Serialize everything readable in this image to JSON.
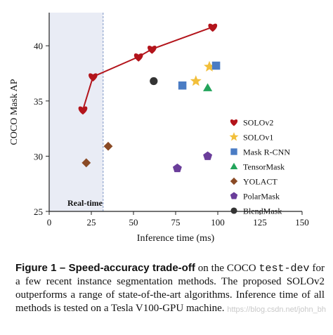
{
  "chart_data": {
    "type": "scatter",
    "xlabel": "Inference time (ms)",
    "ylabel": "COCO Mask AP",
    "xlim": [
      0,
      150
    ],
    "ylim": [
      25,
      43
    ],
    "xticks": [
      0,
      25,
      50,
      75,
      100,
      125,
      150
    ],
    "yticks": [
      25,
      30,
      35,
      40
    ],
    "grid": false,
    "legend_position": "right",
    "shaded_region": {
      "label": "Real-time",
      "x_range": [
        0,
        32
      ],
      "color": "#e9ecf5"
    },
    "series": [
      {
        "name": "SOLOv2",
        "marker": "heart",
        "color": "#b3141b",
        "line": true,
        "points": [
          [
            20,
            34.2
          ],
          [
            26,
            37.2
          ],
          [
            53,
            39.0
          ],
          [
            61,
            39.7
          ],
          [
            97,
            41.7
          ]
        ]
      },
      {
        "name": "SOLOv1",
        "marker": "star",
        "color": "#f2bf3a",
        "points": [
          [
            87,
            36.8
          ],
          [
            95,
            38.1
          ]
        ]
      },
      {
        "name": "Mask R-CNN",
        "marker": "square",
        "color": "#4a7cc4",
        "points": [
          [
            79,
            36.4
          ],
          [
            99,
            38.2
          ]
        ]
      },
      {
        "name": "TensorMask",
        "marker": "triangle",
        "color": "#23a45b",
        "points": [
          [
            94,
            36.2
          ]
        ]
      },
      {
        "name": "YOLACT",
        "marker": "diamond",
        "color": "#8a4a25",
        "points": [
          [
            22,
            29.4
          ],
          [
            35,
            30.9
          ]
        ]
      },
      {
        "name": "PolarMask",
        "marker": "pentagon",
        "color": "#6a3d9a",
        "points": [
          [
            76,
            28.9
          ],
          [
            94,
            30.0
          ]
        ]
      },
      {
        "name": "BlendMask",
        "marker": "circle",
        "color": "#333333",
        "points": [
          [
            62,
            36.8
          ]
        ]
      }
    ]
  },
  "caption": {
    "figure_label": "Figure 1 – Speed-accuracy trade-off",
    "text_1": " on the COCO ",
    "dataset_split": "test-dev",
    "text_2": " for a few recent instance segmentation methods. The proposed SOLOv2 outperforms a range of state-of-the-art algorithms. Inference time of all methods is tested on a Tesla V100-GPU machine."
  },
  "watermark": "https://blog.csdn.net/john_bh"
}
